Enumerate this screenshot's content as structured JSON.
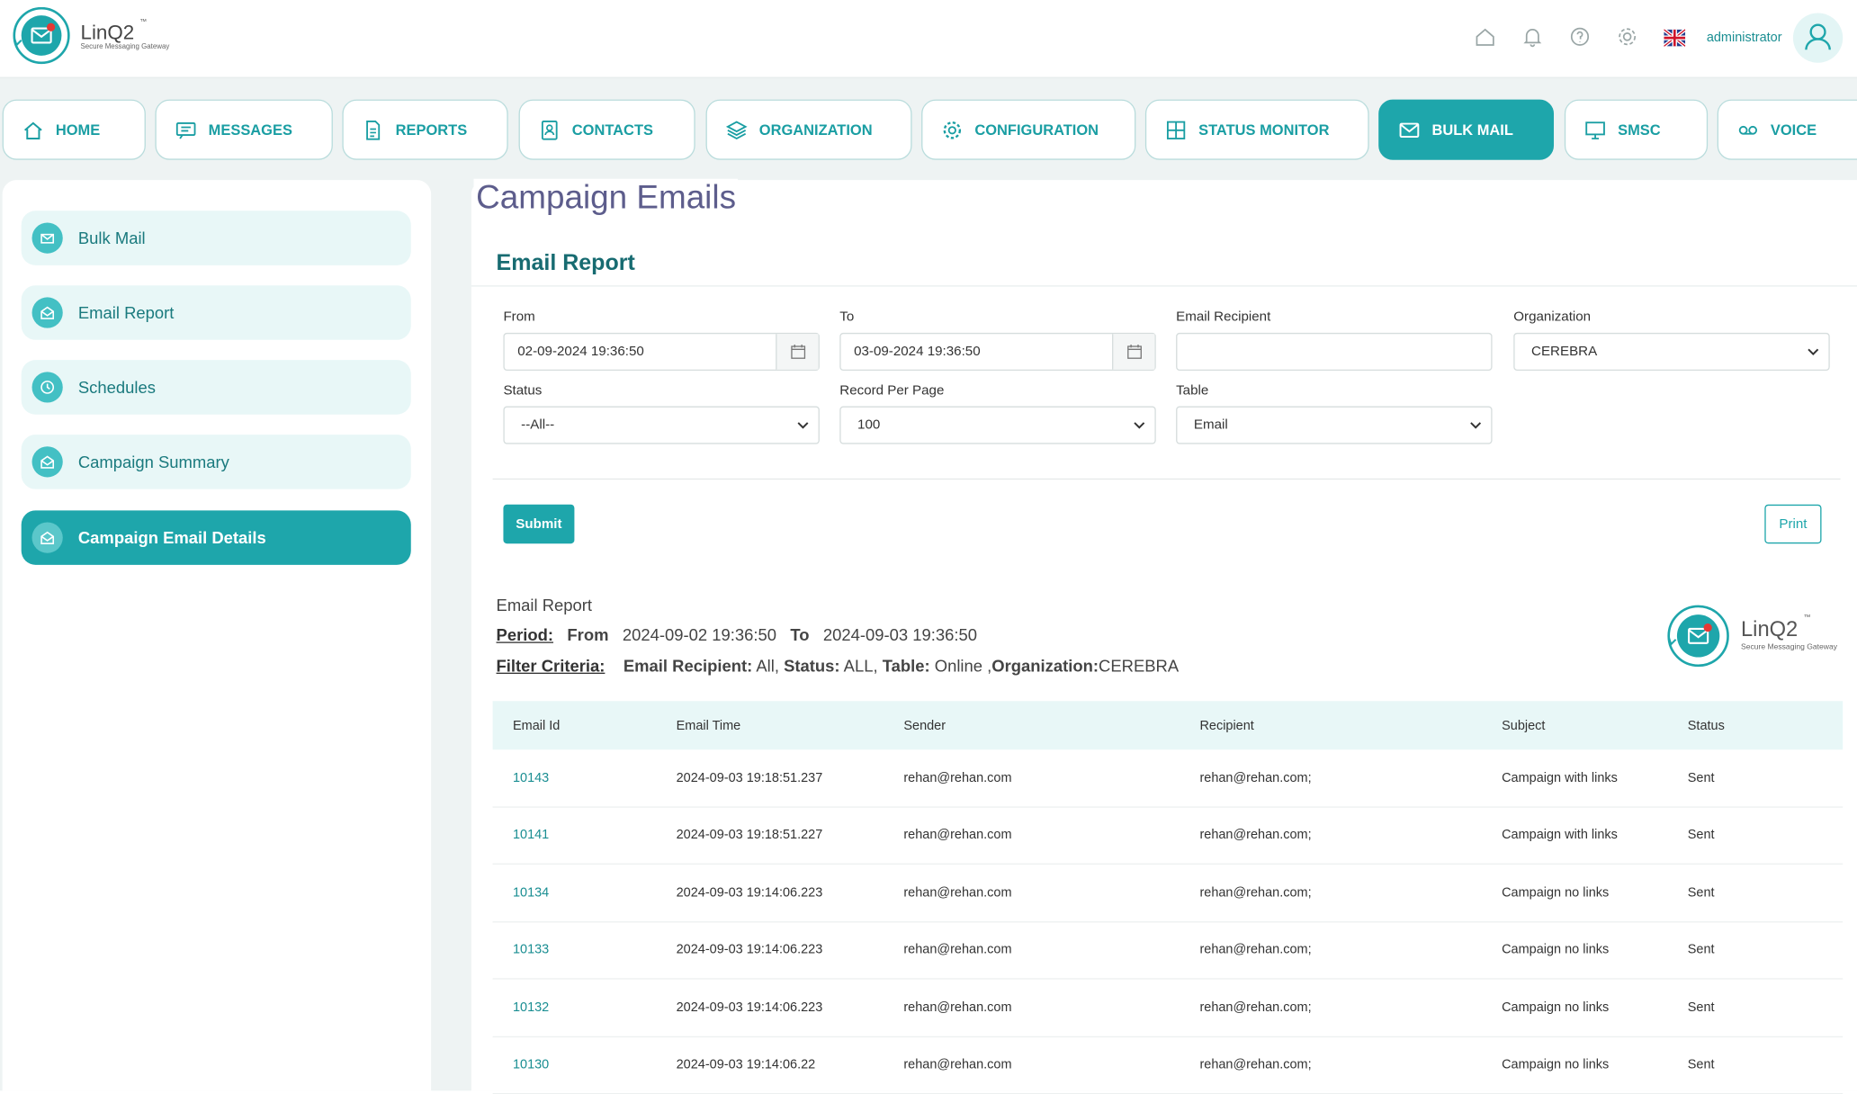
{
  "app": {
    "name": "LinQ2",
    "tm": "™",
    "tagline": "Secure Messaging Gateway"
  },
  "header": {
    "user": "administrator"
  },
  "nav": [
    {
      "label": "HOME",
      "icon": "home-icon"
    },
    {
      "label": "MESSAGES",
      "icon": "message-icon"
    },
    {
      "label": "REPORTS",
      "icon": "document-icon"
    },
    {
      "label": "CONTACTS",
      "icon": "contact-card-icon"
    },
    {
      "label": "ORGANIZATION",
      "icon": "layers-icon"
    },
    {
      "label": "CONFIGURATION",
      "icon": "gear-icon"
    },
    {
      "label": "STATUS MONITOR",
      "icon": "grid-icon"
    },
    {
      "label": "BULK MAIL",
      "icon": "mail-icon",
      "active": true
    },
    {
      "label": "SMSC",
      "icon": "monitor-icon"
    },
    {
      "label": "VOICE",
      "icon": "voicemail-icon"
    }
  ],
  "sidebar": [
    {
      "label": "Bulk Mail"
    },
    {
      "label": "Email Report"
    },
    {
      "label": "Schedules"
    },
    {
      "label": "Campaign Summary"
    },
    {
      "label": "Campaign Email Details",
      "active": true
    }
  ],
  "page": {
    "title": "Campaign Emails",
    "card_title": "Email Report"
  },
  "filters": {
    "from_label": "From",
    "from_value": "02-09-2024 19:36:50",
    "to_label": "To",
    "to_value": "03-09-2024 19:36:50",
    "recipient_label": "Email Recipient",
    "recipient_value": "",
    "org_label": "Organization",
    "org_value": "CEREBRA",
    "status_label": "Status",
    "status_value": "--All--",
    "rpp_label": "Record Per Page",
    "rpp_value": "100",
    "table_label": "Table",
    "table_value": "Email",
    "submit": "Submit",
    "print": "Print"
  },
  "report": {
    "title": "Email Report",
    "period_label": "Period:",
    "from_word": "From",
    "from": "2024-09-02 19:36:50",
    "to_word": "To",
    "to": "2024-09-03 19:36:50",
    "filter_label": "Filter Criteria:",
    "fc_recipient_key": "Email Recipient:",
    "fc_recipient_val": " All, ",
    "fc_status_key": "Status:",
    "fc_status_val": " ALL, ",
    "fc_table_key": "Table:",
    "fc_table_val": " Online ,",
    "fc_org_key": "Organization:",
    "fc_org_val": "CEREBRA"
  },
  "table": {
    "headers": [
      "Email Id",
      "Email Time",
      "Sender",
      "Recipient",
      "Subject",
      "Status"
    ],
    "rows": [
      [
        "10143",
        "2024-09-03 19:18:51.237",
        "rehan@rehan.com",
        "rehan@rehan.com;",
        "Campaign with links",
        "Sent"
      ],
      [
        "10141",
        "2024-09-03 19:18:51.227",
        "rehan@rehan.com",
        "rehan@rehan.com;",
        "Campaign with links",
        "Sent"
      ],
      [
        "10134",
        "2024-09-03 19:14:06.223",
        "rehan@rehan.com",
        "rehan@rehan.com;",
        "Campaign no links",
        "Sent"
      ],
      [
        "10133",
        "2024-09-03 19:14:06.223",
        "rehan@rehan.com",
        "rehan@rehan.com;",
        "Campaign no links",
        "Sent"
      ],
      [
        "10132",
        "2024-09-03 19:14:06.223",
        "rehan@rehan.com",
        "rehan@rehan.com;",
        "Campaign no links",
        "Sent"
      ],
      [
        "10130",
        "2024-09-03 19:14:06.22",
        "rehan@rehan.com",
        "rehan@rehan.com;",
        "Campaign no links",
        "Sent"
      ]
    ]
  },
  "colors": {
    "accent": "#1ea6ab",
    "title": "#5d5d8c",
    "dark_teal": "#176b71"
  }
}
